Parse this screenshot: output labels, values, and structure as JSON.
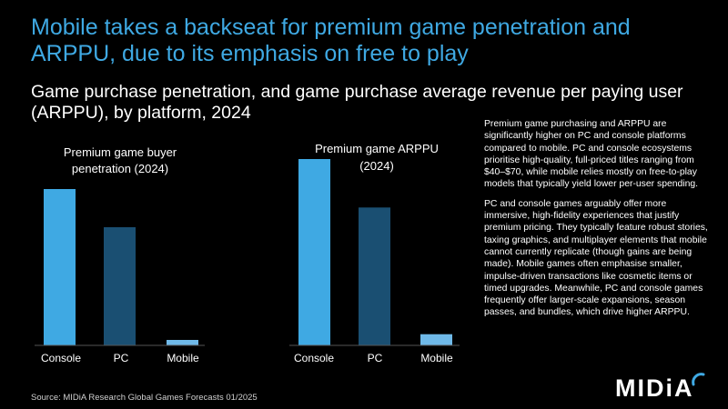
{
  "header": {
    "title": "Mobile takes a backseat for premium game penetration and ARPPU, due to its emphasis on free to play",
    "subtitle": "Game purchase penetration, and game purchase average revenue per paying user (ARPPU), by platform, 2024"
  },
  "commentary": {
    "paragraph1": "Premium game purchasing and ARPPU are significantly higher on PC and console platforms compared to mobile. PC and console ecosystems prioritise high-quality, full-priced titles ranging from $40–$70, while mobile relies mostly on free-to-play models that typically yield lower per-user spending.",
    "paragraph2": "PC and console games arguably offer more immersive, high-fidelity experiences that justify premium pricing. They typically feature robust stories, taxing graphics, and multiplayer elements that mobile cannot currently replicate (though gains are being made). Mobile games often emphasise smaller, impulse-driven transactions like cosmetic items or timed upgrades. Meanwhile, PC and console games frequently offer larger-scale expansions, season passes, and bundles, which drive higher ARPPU."
  },
  "footer": {
    "source": "Source: MIDiA Research Global Games Forecasts 01/2025",
    "logo_text": "MIDiA"
  },
  "colors": {
    "title": "#3fa9e3",
    "console": "#3fa9e3",
    "pc": "#1a4f72",
    "mobile": "#6fb9e8"
  },
  "chart_data": [
    {
      "type": "bar",
      "title_lines": [
        "Premium game buyer",
        "penetration (2024)"
      ],
      "categories": [
        "Console",
        "PC",
        "Mobile"
      ],
      "values": [
        0.86,
        0.65,
        0.03
      ],
      "ylim": [
        0,
        1
      ],
      "xlabel": "",
      "ylabel": "",
      "grid": false
    },
    {
      "type": "bar",
      "title_lines": [
        "Premium game ARPPU",
        "(2024)"
      ],
      "categories": [
        "Console",
        "PC",
        "Mobile"
      ],
      "values": [
        1.0,
        0.74,
        0.06
      ],
      "ylim": [
        0,
        1
      ],
      "xlabel": "",
      "ylabel": "",
      "grid": false
    }
  ]
}
